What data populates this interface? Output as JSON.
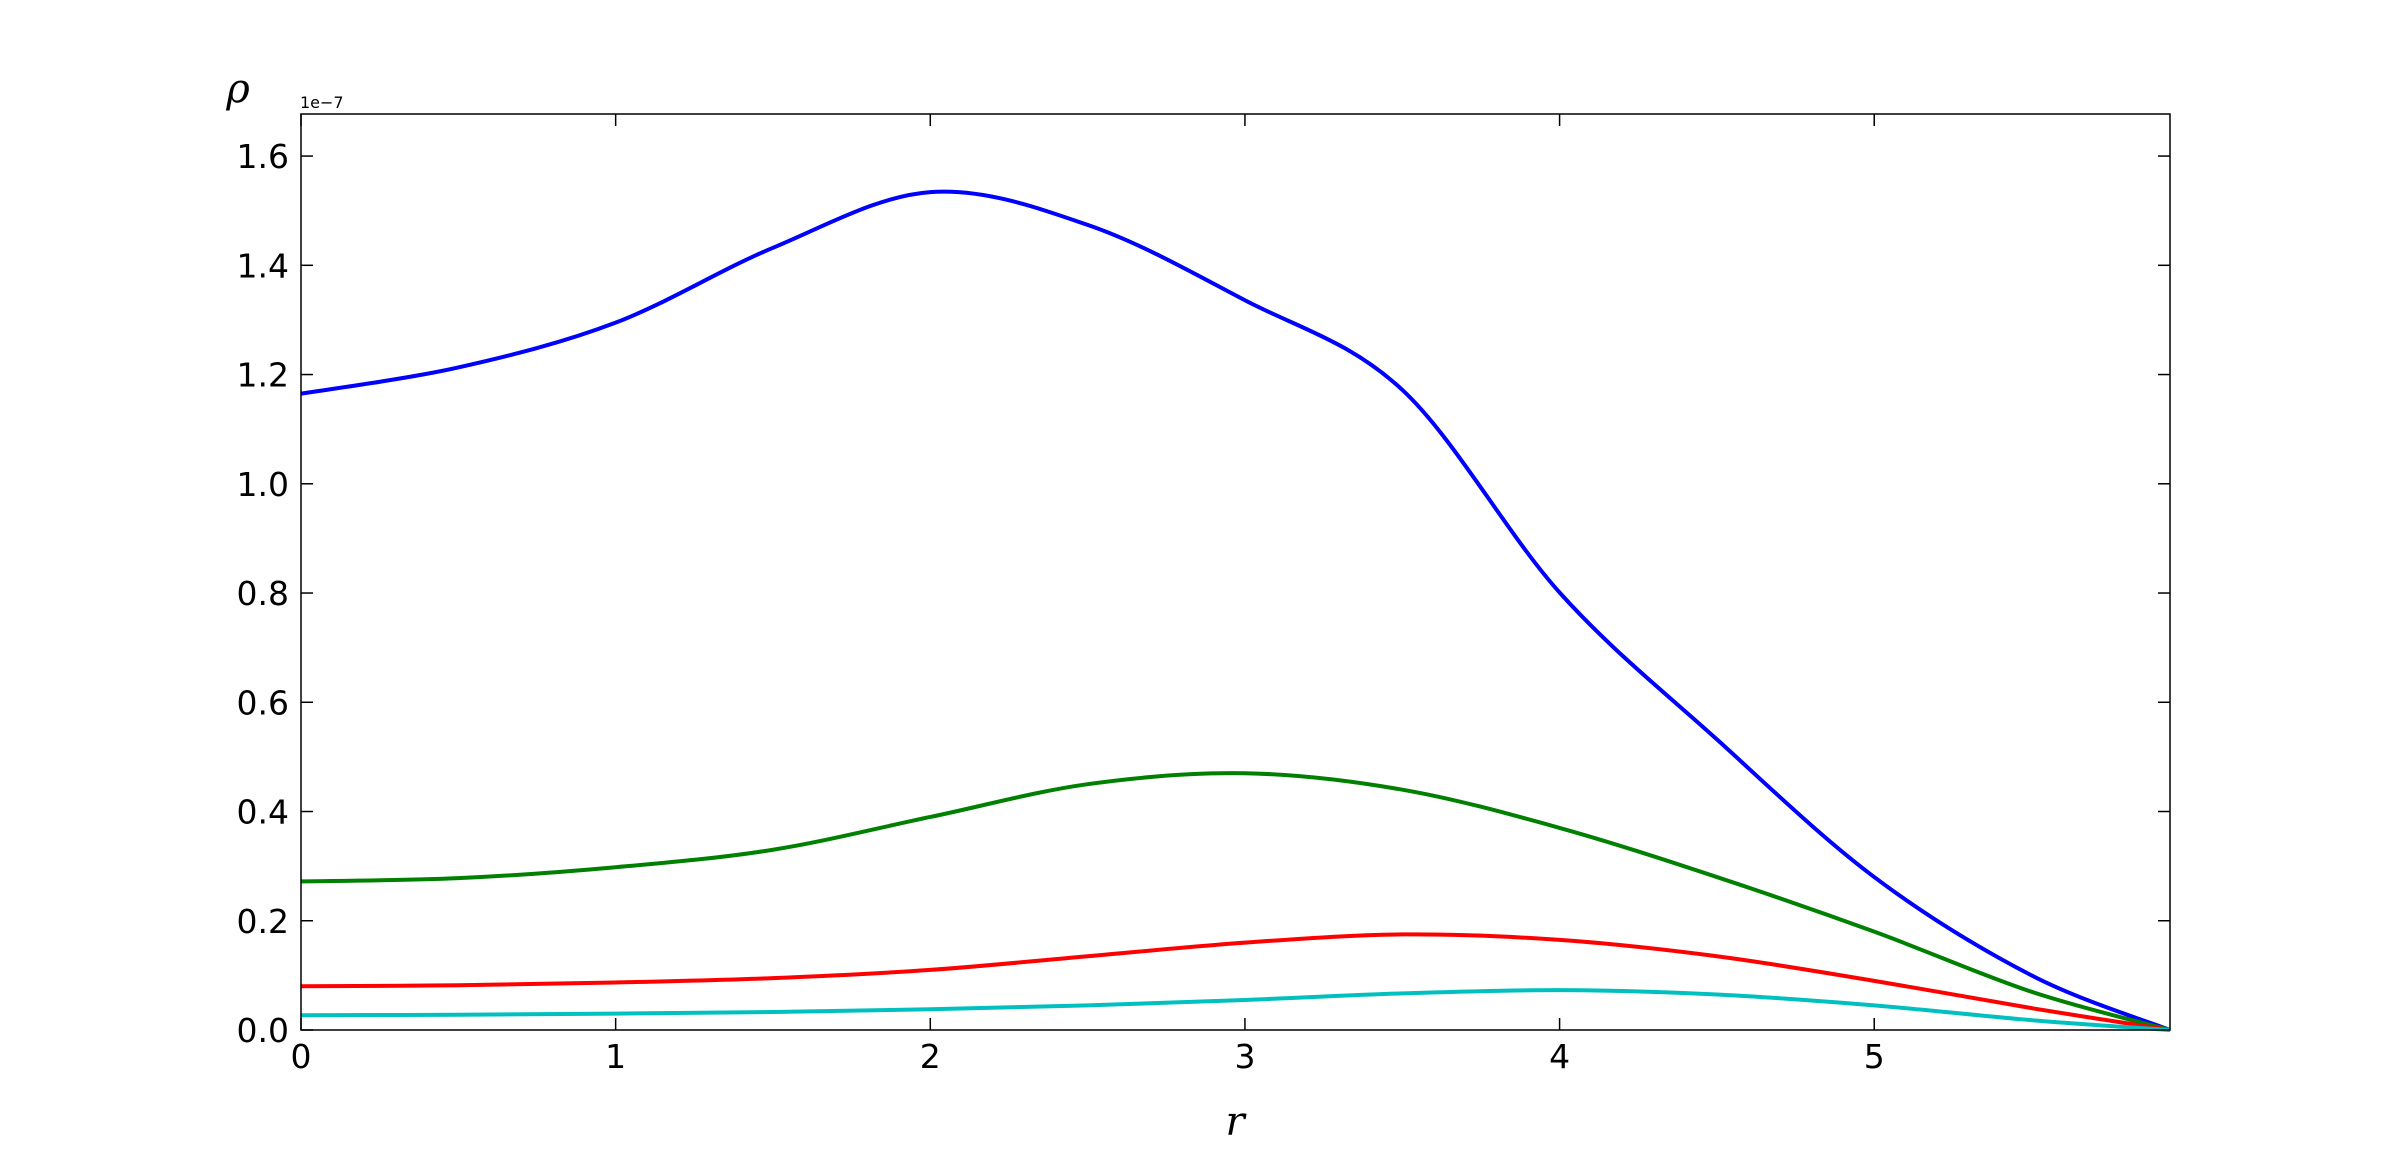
{
  "chart_data": {
    "type": "line",
    "xlabel": "r",
    "ylabel": "ρ",
    "y_offset_label": "1e−7",
    "x": [
      0,
      0.5,
      1,
      1.5,
      2,
      2.5,
      3,
      3.5,
      4,
      4.5,
      5,
      5.5,
      5.94
    ],
    "series": [
      {
        "color": "#0000ff",
        "values": [
          1.165,
          1.213,
          1.295,
          1.432,
          1.534,
          1.474,
          1.336,
          1.172,
          0.801,
          0.532,
          0.28,
          0.1,
          0
        ]
      },
      {
        "color": "#008000",
        "values": [
          0.272,
          0.278,
          0.298,
          0.33,
          0.39,
          0.45,
          0.47,
          0.44,
          0.37,
          0.28,
          0.18,
          0.07,
          0
        ]
      },
      {
        "color": "#ff0000",
        "values": [
          0.08,
          0.082,
          0.087,
          0.095,
          0.11,
          0.135,
          0.16,
          0.175,
          0.165,
          0.135,
          0.09,
          0.04,
          0
        ]
      },
      {
        "color": "#00bfbf",
        "values": [
          0.027,
          0.028,
          0.03,
          0.033,
          0.038,
          0.045,
          0.055,
          0.067,
          0.073,
          0.065,
          0.045,
          0.018,
          0
        ]
      }
    ],
    "xlim": [
      0,
      5.94
    ],
    "ylim": [
      0,
      1.677
    ],
    "xticks": [
      0,
      1,
      2,
      3,
      4,
      5
    ],
    "yticks": [
      {
        "value": 0,
        "label": "0.0"
      },
      0.2,
      0.4,
      0.6,
      0.8,
      {
        "value": 1,
        "label": "1.0"
      },
      1.2,
      1.4,
      1.6
    ],
    "grid": false
  }
}
